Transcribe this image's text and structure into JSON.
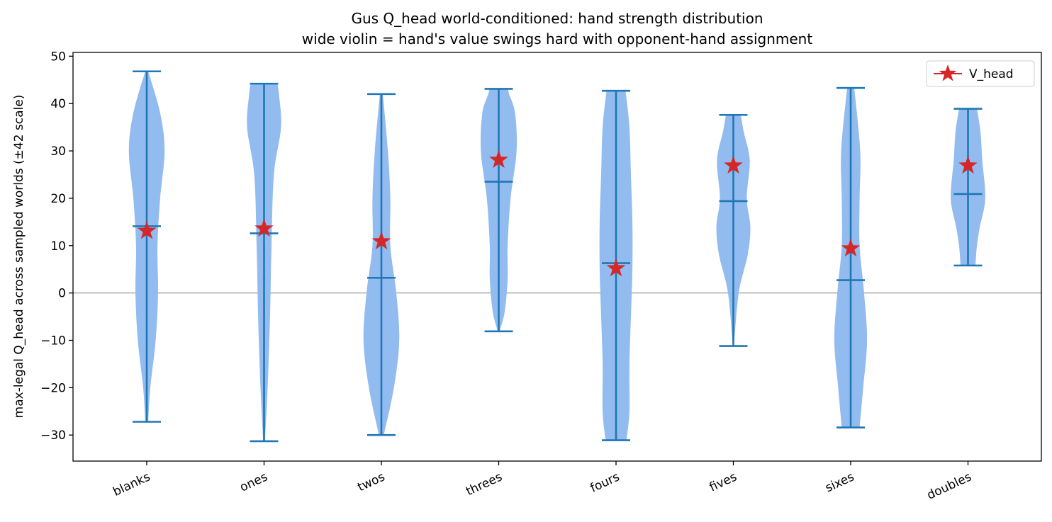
{
  "chart_data": {
    "type": "violin",
    "title": "Gus Q_head world-conditioned: hand strength distribution",
    "subtitle": "wide violin = hand's value swings hard with opponent-hand assignment",
    "xlabel": "",
    "ylabel": "max-legal Q_head across sampled worlds (±42 scale)",
    "ylim": [
      -35.5,
      50.8
    ],
    "yticks": [
      -30,
      -20,
      -10,
      0,
      10,
      20,
      30,
      40,
      50
    ],
    "categories": [
      "blanks",
      "ones",
      "twos",
      "threes",
      "fours",
      "fives",
      "sixes",
      "doubles"
    ],
    "reference_line_y": 0,
    "grid": false,
    "legend": {
      "position": "top-right",
      "entries": [
        "V_head"
      ]
    },
    "colors": {
      "violin": "#92bbef",
      "whisker": "#1f77b4",
      "marker": "#d62728",
      "zero_line": "#999999"
    },
    "violins": [
      {
        "category": "blanks",
        "min": -27.2,
        "max": 46.8,
        "median": 14.1,
        "v_head": 13.1,
        "density": [
          [
            -27.2,
            0.05
          ],
          [
            -20,
            0.12
          ],
          [
            -10,
            0.3
          ],
          [
            0,
            0.38
          ],
          [
            10,
            0.36
          ],
          [
            20,
            0.45
          ],
          [
            30,
            0.6
          ],
          [
            38,
            0.45
          ],
          [
            46.8,
            0.05
          ]
        ]
      },
      {
        "category": "ones",
        "min": -31.3,
        "max": 44.2,
        "median": 12.6,
        "v_head": 13.6,
        "density": [
          [
            -31.3,
            0.03
          ],
          [
            -20,
            0.12
          ],
          [
            -5,
            0.2
          ],
          [
            10,
            0.25
          ],
          [
            25,
            0.33
          ],
          [
            35,
            0.57
          ],
          [
            42,
            0.5
          ],
          [
            44.2,
            0.45
          ]
        ]
      },
      {
        "category": "twos",
        "min": -30.0,
        "max": 42.0,
        "median": 3.2,
        "v_head": 10.9,
        "density": [
          [
            -30,
            0.08
          ],
          [
            -20,
            0.42
          ],
          [
            -10,
            0.6
          ],
          [
            0,
            0.5
          ],
          [
            10,
            0.3
          ],
          [
            20,
            0.3
          ],
          [
            30,
            0.22
          ],
          [
            42,
            0.05
          ]
        ]
      },
      {
        "category": "threes",
        "min": -8.1,
        "max": 43.1,
        "median": 23.5,
        "v_head": 28.1,
        "density": [
          [
            -8.1,
            0.03
          ],
          [
            -4,
            0.2
          ],
          [
            3,
            0.3
          ],
          [
            10,
            0.3
          ],
          [
            20,
            0.4
          ],
          [
            30,
            0.6
          ],
          [
            38,
            0.55
          ],
          [
            42,
            0.35
          ],
          [
            43.1,
            0.32
          ]
        ]
      },
      {
        "category": "fours",
        "min": -31.1,
        "max": 42.7,
        "median": 6.3,
        "v_head": 5.2,
        "density": [
          [
            -31.1,
            0.35
          ],
          [
            -25,
            0.45
          ],
          [
            -15,
            0.45
          ],
          [
            -5,
            0.5
          ],
          [
            5,
            0.55
          ],
          [
            15,
            0.55
          ],
          [
            25,
            0.5
          ],
          [
            35,
            0.45
          ],
          [
            42.7,
            0.32
          ]
        ]
      },
      {
        "category": "fives",
        "min": -11.2,
        "max": 37.6,
        "median": 19.4,
        "v_head": 26.9,
        "density": [
          [
            -11.2,
            0.02
          ],
          [
            0,
            0.18
          ],
          [
            8,
            0.48
          ],
          [
            14,
            0.57
          ],
          [
            20,
            0.45
          ],
          [
            28,
            0.55
          ],
          [
            34,
            0.35
          ],
          [
            37.6,
            0.25
          ]
        ]
      },
      {
        "category": "sixes",
        "min": -28.4,
        "max": 43.3,
        "median": 2.7,
        "v_head": 9.4,
        "density": [
          [
            -28.4,
            0.3
          ],
          [
            -20,
            0.42
          ],
          [
            -10,
            0.55
          ],
          [
            0,
            0.45
          ],
          [
            10,
            0.3
          ],
          [
            20,
            0.3
          ],
          [
            30,
            0.32
          ],
          [
            43.3,
            0.12
          ]
        ]
      },
      {
        "category": "doubles",
        "min": 5.8,
        "max": 38.9,
        "median": 20.9,
        "v_head": 26.9,
        "density": [
          [
            5.8,
            0.25
          ],
          [
            10,
            0.3
          ],
          [
            14,
            0.4
          ],
          [
            20,
            0.58
          ],
          [
            28,
            0.48
          ],
          [
            34,
            0.42
          ],
          [
            38.9,
            0.3
          ]
        ]
      }
    ]
  }
}
